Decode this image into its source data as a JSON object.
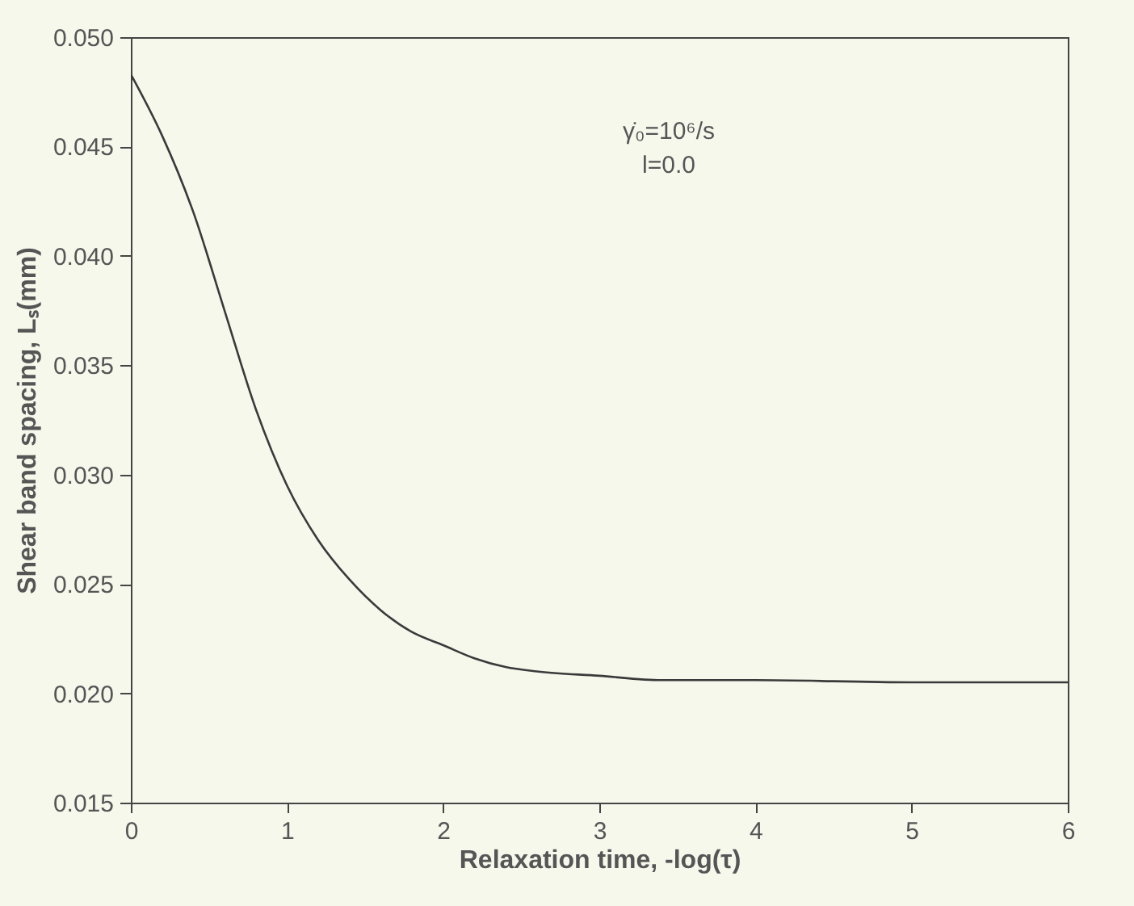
{
  "chart_data": {
    "type": "line",
    "xlabel": "Relaxation time,  -log(τ)",
    "ylabel": "Shear band spacing, Lₛ(mm)",
    "annotations": [
      "γ̇₀=10⁶/s",
      "l=0.0"
    ],
    "x": [
      0,
      0.2,
      0.4,
      0.6,
      0.8,
      1.0,
      1.2,
      1.4,
      1.6,
      1.8,
      2.0,
      2.2,
      2.4,
      2.6,
      3.0,
      3.4,
      4,
      5,
      6
    ],
    "series": [
      {
        "color": "#3a3a3a",
        "values": [
          0.0483,
          0.0455,
          0.042,
          0.0375,
          0.033,
          0.0295,
          0.027,
          0.0252,
          0.0238,
          0.0228,
          0.0222,
          0.0216,
          0.0212,
          0.021,
          0.0208,
          0.0206,
          0.0206,
          0.0205,
          0.0205
        ]
      }
    ],
    "xlim": [
      0,
      6
    ],
    "xticks": [
      0,
      1,
      2,
      3,
      4,
      5,
      6
    ],
    "ylim": [
      0.015,
      0.05
    ],
    "yticks": [
      {
        "value": 0.015,
        "label": "0.015"
      },
      {
        "value": 0.02,
        "label": "0.020"
      },
      {
        "value": 0.025,
        "label": "0.025"
      },
      {
        "value": 0.03,
        "label": "0.030"
      },
      {
        "value": 0.035,
        "label": "0.035"
      },
      {
        "value": 0.04,
        "label": "0.040"
      },
      {
        "value": 0.045,
        "label": "0.045"
      },
      {
        "value": 0.05,
        "label": "0.050"
      }
    ],
    "grid": false,
    "marker": "none",
    "line_style": "solid"
  }
}
